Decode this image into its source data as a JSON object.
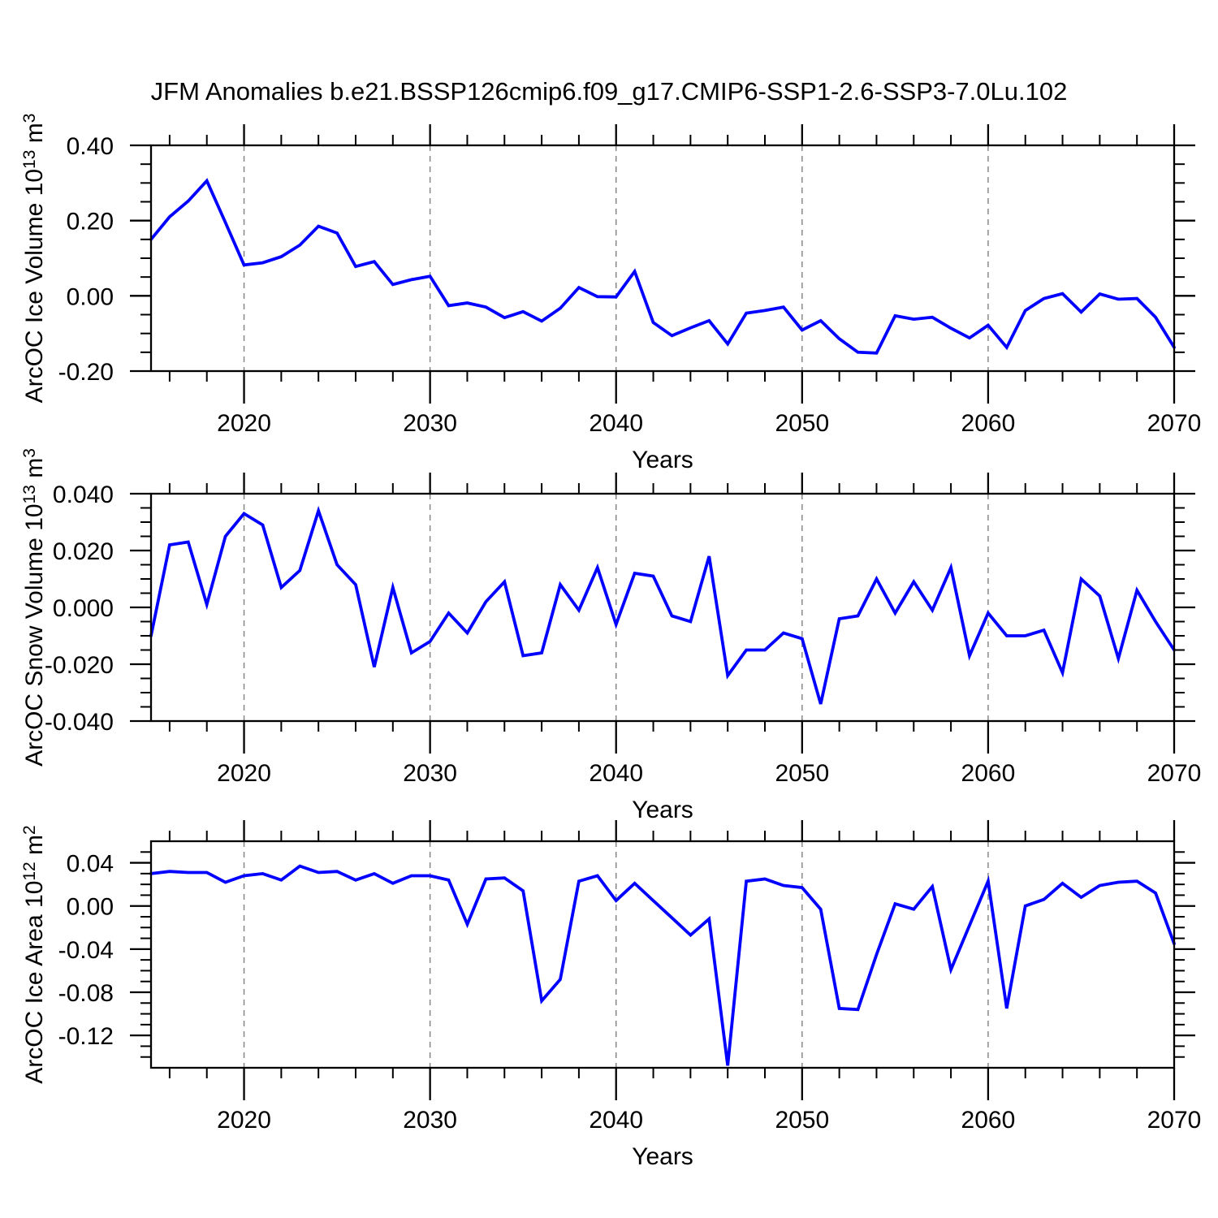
{
  "title": "JFM Anomalies b.e21.BSSP126cmip6.f09_g17.CMIP6-SSP1-2.6-SSP3-7.0Lu.102",
  "chart_data": {
    "type": "line",
    "title": "JFM Anomalies b.e21.BSSP126cmip6.f09_g17.CMIP6-SSP1-2.6-SSP3-7.0Lu.102",
    "x_axis_label": "Years",
    "line_color": "#0000ff",
    "axis_color": "#000000",
    "gridline_color": "#808080",
    "grid_style": "dashed-vertical-at-decades",
    "legend": "none",
    "x": [
      2015,
      2016,
      2017,
      2018,
      2019,
      2020,
      2021,
      2022,
      2023,
      2024,
      2025,
      2026,
      2027,
      2028,
      2029,
      2030,
      2031,
      2032,
      2033,
      2034,
      2035,
      2036,
      2037,
      2038,
      2039,
      2040,
      2041,
      2042,
      2043,
      2044,
      2045,
      2046,
      2047,
      2048,
      2049,
      2050,
      2051,
      2052,
      2053,
      2054,
      2055,
      2056,
      2057,
      2058,
      2059,
      2060,
      2061,
      2062,
      2063,
      2064,
      2065,
      2066,
      2067,
      2068,
      2069,
      2070
    ],
    "xlim": [
      2015,
      2070
    ],
    "x_tick_years": [
      2020,
      2030,
      2040,
      2050,
      2060,
      2070
    ],
    "x_tick_labels": [
      "2020",
      "2030",
      "2040",
      "2050",
      "2060",
      "2070"
    ],
    "x_minor_step_years": 2,
    "dashed_gridline_years": [
      2020,
      2030,
      2040,
      2050,
      2060
    ],
    "subplots": [
      {
        "name": "arcoc-ice-volume",
        "ylabel_text": "ArcOC Ice Volume 10^13 m^3",
        "ylabel_parts": [
          {
            "t": "ArcOC Ice Volume 10"
          },
          {
            "t": "13",
            "sup": true
          },
          {
            "t": " m"
          },
          {
            "t": "3",
            "sup": true
          }
        ],
        "ylim": [
          -0.2,
          0.4
        ],
        "y_tick_values": [
          0.4,
          0.2,
          0.0,
          -0.2
        ],
        "y_tick_labels": [
          "0.40",
          "0.20",
          "0.00",
          "-0.20"
        ],
        "y_minor_step": 0.05,
        "values": [
          0.15,
          0.21,
          0.252,
          0.306,
          0.195,
          0.082,
          0.088,
          0.104,
          0.135,
          0.185,
          0.167,
          0.078,
          0.091,
          0.03,
          0.043,
          0.052,
          -0.026,
          -0.019,
          -0.03,
          -0.058,
          -0.042,
          -0.067,
          -0.033,
          0.022,
          -0.002,
          -0.003,
          0.065,
          -0.071,
          -0.106,
          -0.085,
          -0.066,
          -0.128,
          -0.046,
          -0.039,
          -0.03,
          -0.091,
          -0.066,
          -0.114,
          -0.15,
          -0.152,
          -0.053,
          -0.062,
          -0.057,
          -0.086,
          -0.112,
          -0.078,
          -0.137,
          -0.039,
          -0.007,
          0.006,
          -0.043,
          0.005,
          -0.009,
          -0.007,
          -0.057,
          -0.137
        ]
      },
      {
        "name": "arcoc-snow-volume",
        "ylabel_text": "ArcOC Snow Volume 10^13 m^3",
        "ylabel_parts": [
          {
            "t": "ArcOC Snow Volume 10"
          },
          {
            "t": "13",
            "sup": true
          },
          {
            "t": " m"
          },
          {
            "t": "3",
            "sup": true
          }
        ],
        "ylim": [
          -0.04,
          0.04
        ],
        "y_tick_values": [
          0.04,
          0.02,
          0.0,
          -0.02,
          -0.04
        ],
        "y_tick_labels": [
          "0.040",
          "0.020",
          "0.000",
          "-0.020",
          "-0.040"
        ],
        "y_minor_step": 0.005,
        "values": [
          -0.01,
          0.022,
          0.023,
          0.001,
          0.025,
          0.033,
          0.029,
          0.007,
          0.013,
          0.034,
          0.015,
          0.008,
          -0.021,
          0.007,
          -0.016,
          -0.012,
          -0.002,
          -0.009,
          0.002,
          0.009,
          -0.017,
          -0.016,
          0.008,
          -0.001,
          0.014,
          -0.006,
          0.012,
          0.011,
          -0.003,
          -0.005,
          0.018,
          -0.024,
          -0.015,
          -0.015,
          -0.009,
          -0.011,
          -0.034,
          -0.004,
          -0.003,
          0.01,
          -0.002,
          0.009,
          -0.001,
          0.014,
          -0.017,
          -0.002,
          -0.01,
          -0.01,
          -0.008,
          -0.023,
          0.01,
          0.004,
          -0.018,
          0.006,
          -0.005,
          -0.015
        ]
      },
      {
        "name": "arcoc-ice-area",
        "ylabel_text": "ArcOC Ice Area 10^12 m^2",
        "ylabel_parts": [
          {
            "t": "ArcOC Ice Area 10"
          },
          {
            "t": "12",
            "sup": true
          },
          {
            "t": " m"
          },
          {
            "t": "2",
            "sup": true
          }
        ],
        "ylim": [
          -0.15,
          0.06
        ],
        "y_tick_values": [
          0.04,
          0.0,
          -0.04,
          -0.08,
          -0.12
        ],
        "y_tick_labels": [
          "0.04",
          "0.00",
          "-0.04",
          "-0.08",
          "-0.12"
        ],
        "y_minor_step": 0.01,
        "values": [
          0.03,
          0.032,
          0.031,
          0.031,
          0.022,
          0.028,
          0.03,
          0.024,
          0.037,
          0.031,
          0.032,
          0.024,
          0.03,
          0.021,
          0.028,
          0.028,
          0.024,
          -0.017,
          0.025,
          0.026,
          0.014,
          -0.088,
          -0.068,
          0.023,
          0.028,
          0.005,
          0.021,
          0.005,
          -0.011,
          -0.027,
          -0.012,
          -0.148,
          0.023,
          0.025,
          0.019,
          0.017,
          -0.003,
          -0.095,
          -0.096,
          -0.045,
          0.002,
          -0.003,
          0.018,
          -0.059,
          -0.018,
          0.023,
          -0.095,
          0.0,
          0.006,
          0.021,
          0.008,
          0.019,
          0.022,
          0.023,
          0.012,
          -0.035
        ]
      }
    ]
  }
}
